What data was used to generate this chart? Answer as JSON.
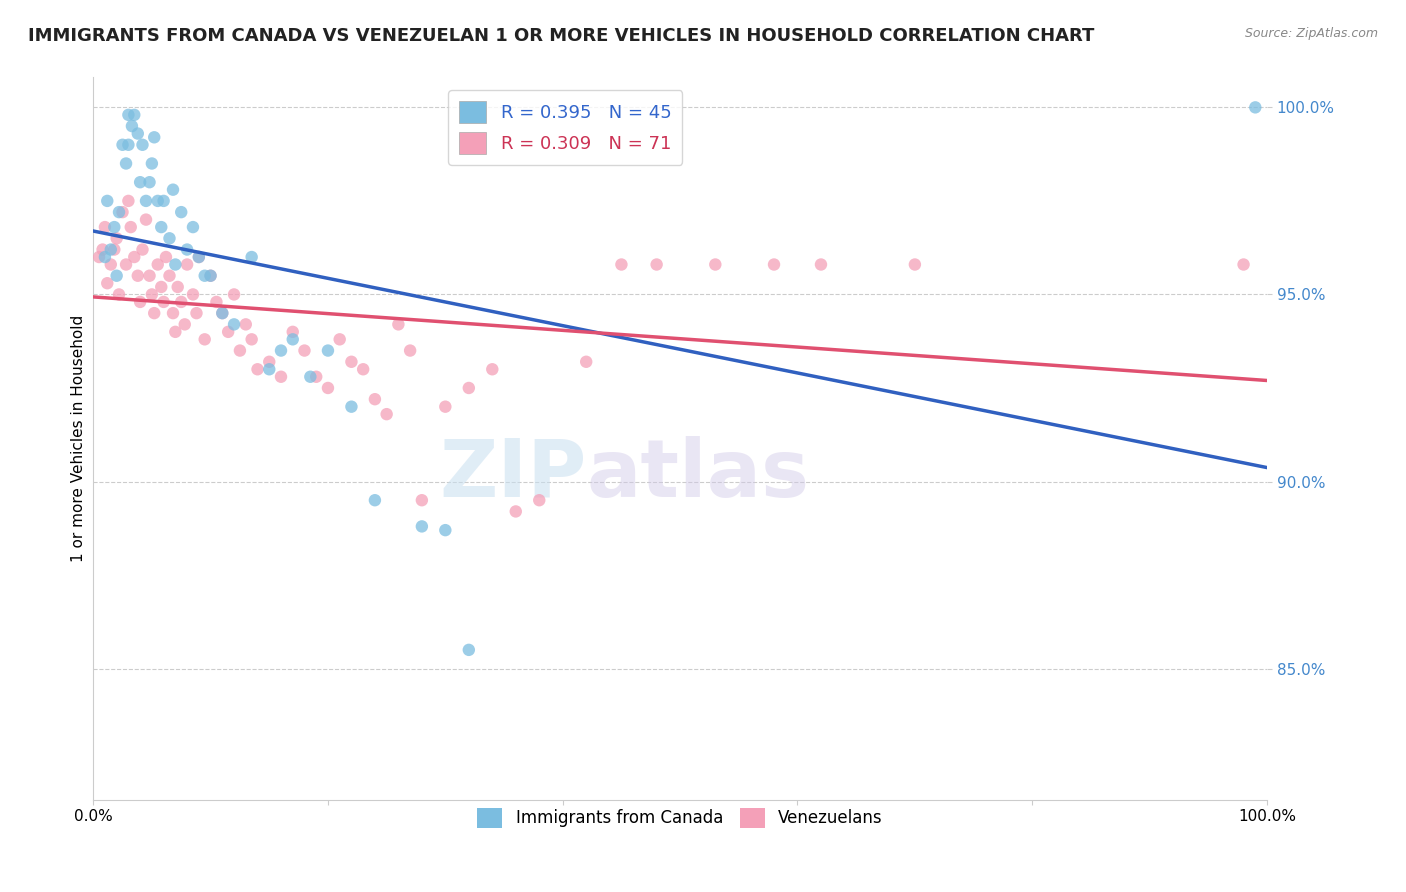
{
  "title": "IMMIGRANTS FROM CANADA VS VENEZUELAN 1 OR MORE VEHICLES IN HOUSEHOLD CORRELATION CHART",
  "source": "Source: ZipAtlas.com",
  "ylabel": "1 or more Vehicles in Household",
  "xlim": [
    0,
    1.0
  ],
  "ylim": [
    0.815,
    1.008
  ],
  "yticks": [
    0.85,
    0.9,
    0.95,
    1.0
  ],
  "ytick_labels": [
    "85.0%",
    "90.0%",
    "95.0%",
    "100.0%"
  ],
  "xticks": [
    0.0,
    0.2,
    0.4,
    0.6,
    0.8,
    1.0
  ],
  "xtick_labels": [
    "0.0%",
    "",
    "",
    "",
    "",
    "100.0%"
  ],
  "canada_R": 0.395,
  "canada_N": 45,
  "venezuela_R": 0.309,
  "venezuela_N": 71,
  "canada_color": "#7bbde0",
  "venezuela_color": "#f4a0b8",
  "canada_line_color": "#3060c0",
  "venezuela_line_color": "#e05070",
  "canada_x": [
    0.01,
    0.012,
    0.015,
    0.018,
    0.02,
    0.022,
    0.025,
    0.028,
    0.03,
    0.03,
    0.033,
    0.035,
    0.038,
    0.04,
    0.042,
    0.045,
    0.048,
    0.05,
    0.052,
    0.055,
    0.058,
    0.06,
    0.065,
    0.068,
    0.07,
    0.075,
    0.08,
    0.085,
    0.09,
    0.095,
    0.1,
    0.11,
    0.12,
    0.135,
    0.15,
    0.16,
    0.17,
    0.185,
    0.2,
    0.22,
    0.24,
    0.28,
    0.3,
    0.32,
    0.99
  ],
  "canada_y": [
    0.96,
    0.975,
    0.962,
    0.968,
    0.955,
    0.972,
    0.99,
    0.985,
    0.998,
    0.99,
    0.995,
    0.998,
    0.993,
    0.98,
    0.99,
    0.975,
    0.98,
    0.985,
    0.992,
    0.975,
    0.968,
    0.975,
    0.965,
    0.978,
    0.958,
    0.972,
    0.962,
    0.968,
    0.96,
    0.955,
    0.955,
    0.945,
    0.942,
    0.96,
    0.93,
    0.935,
    0.938,
    0.928,
    0.935,
    0.92,
    0.895,
    0.888,
    0.887,
    0.855,
    1.0
  ],
  "venezuela_x": [
    0.005,
    0.008,
    0.01,
    0.012,
    0.015,
    0.018,
    0.02,
    0.022,
    0.025,
    0.028,
    0.03,
    0.032,
    0.035,
    0.038,
    0.04,
    0.042,
    0.045,
    0.048,
    0.05,
    0.052,
    0.055,
    0.058,
    0.06,
    0.062,
    0.065,
    0.068,
    0.07,
    0.072,
    0.075,
    0.078,
    0.08,
    0.085,
    0.088,
    0.09,
    0.095,
    0.1,
    0.105,
    0.11,
    0.115,
    0.12,
    0.125,
    0.13,
    0.135,
    0.14,
    0.15,
    0.16,
    0.17,
    0.18,
    0.19,
    0.2,
    0.21,
    0.22,
    0.23,
    0.24,
    0.25,
    0.26,
    0.27,
    0.28,
    0.3,
    0.32,
    0.34,
    0.36,
    0.38,
    0.42,
    0.45,
    0.48,
    0.53,
    0.58,
    0.62,
    0.7,
    0.98
  ],
  "venezuela_y": [
    0.96,
    0.962,
    0.968,
    0.953,
    0.958,
    0.962,
    0.965,
    0.95,
    0.972,
    0.958,
    0.975,
    0.968,
    0.96,
    0.955,
    0.948,
    0.962,
    0.97,
    0.955,
    0.95,
    0.945,
    0.958,
    0.952,
    0.948,
    0.96,
    0.955,
    0.945,
    0.94,
    0.952,
    0.948,
    0.942,
    0.958,
    0.95,
    0.945,
    0.96,
    0.938,
    0.955,
    0.948,
    0.945,
    0.94,
    0.95,
    0.935,
    0.942,
    0.938,
    0.93,
    0.932,
    0.928,
    0.94,
    0.935,
    0.928,
    0.925,
    0.938,
    0.932,
    0.93,
    0.922,
    0.918,
    0.942,
    0.935,
    0.895,
    0.92,
    0.925,
    0.93,
    0.892,
    0.895,
    0.932,
    0.958,
    0.958,
    0.958,
    0.958,
    0.958,
    0.958,
    0.958
  ],
  "background_color": "#ffffff",
  "grid_color": "#cccccc",
  "title_fontsize": 13,
  "axis_fontsize": 11,
  "legend_fontsize": 13,
  "marker_size": 80
}
